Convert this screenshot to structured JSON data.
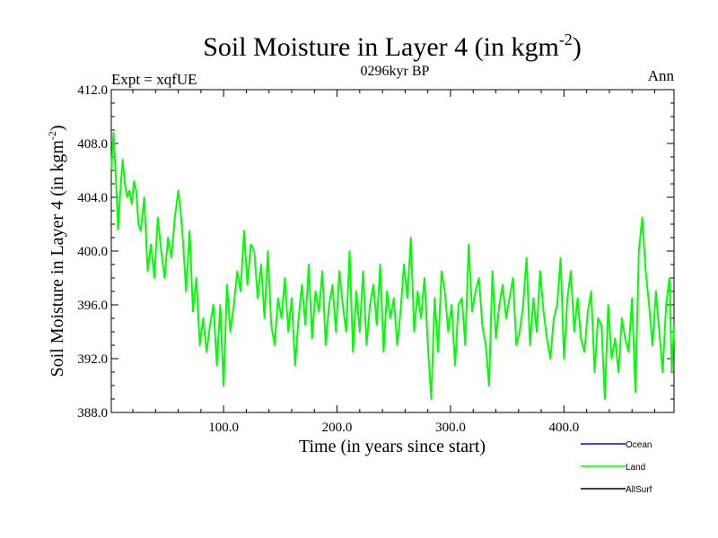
{
  "chart_data": {
    "type": "line",
    "title_main": "Soil Moisture in Layer 4 (in kgm",
    "title_sup": "-2",
    "title_close": ")",
    "subtitle_left": "Expt = xqfUE",
    "subtitle_center": "0296kyr BP",
    "subtitle_right": "Ann",
    "xlabel": "Time (in years since start)",
    "ylabel_main": "Soil Moisture in Layer 4 (in kgm",
    "ylabel_sup": "-2",
    "ylabel_close": ")",
    "xlim": [
      1,
      497
    ],
    "ylim": [
      388.0,
      412.0
    ],
    "x_ticks": [
      100,
      200,
      300,
      400
    ],
    "x_tick_labels": [
      "100.0",
      "200.0",
      "300.0",
      "400.0"
    ],
    "y_ticks": [
      388,
      392,
      396,
      400,
      404,
      408,
      412
    ],
    "y_tick_labels": [
      "388.0",
      "392.0",
      "396.0",
      "400.0",
      "404.0",
      "408.0",
      "412.0"
    ],
    "legend": [
      {
        "name": "Ocean",
        "color": "#0000ff"
      },
      {
        "name": "Land",
        "color": "#00ff00"
      },
      {
        "name": "AllSurf",
        "color": "#000000"
      }
    ],
    "series": [
      {
        "name": "Land",
        "color": "#00ff00",
        "x": [
          1,
          3,
          5,
          7,
          9,
          11,
          13,
          15,
          17,
          19,
          21,
          23,
          25,
          27,
          30,
          33,
          36,
          39,
          42,
          45,
          48,
          51,
          54,
          57,
          60,
          62,
          64,
          67,
          70,
          73,
          76,
          79,
          82,
          85,
          88,
          91,
          94,
          97,
          100,
          103,
          106,
          109,
          112,
          115,
          118,
          121,
          124,
          127,
          130,
          133,
          136,
          139,
          142,
          145,
          148,
          151,
          154,
          157,
          160,
          163,
          166,
          169,
          172,
          175,
          178,
          181,
          184,
          187,
          190,
          193,
          196,
          199,
          202,
          205,
          208,
          211,
          214,
          217,
          220,
          223,
          226,
          229,
          232,
          235,
          238,
          241,
          244,
          247,
          250,
          253,
          256,
          259,
          262,
          265,
          268,
          271,
          274,
          277,
          280,
          283,
          286,
          289,
          292,
          295,
          298,
          301,
          304,
          307,
          310,
          313,
          316,
          319,
          322,
          325,
          328,
          331,
          334,
          337,
          340,
          343,
          346,
          349,
          352,
          355,
          358,
          361,
          364,
          367,
          370,
          373,
          376,
          379,
          382,
          385,
          388,
          391,
          394,
          397,
          400,
          403,
          406,
          409,
          412,
          415,
          418,
          421,
          424,
          427,
          430,
          433,
          436,
          439,
          442,
          445,
          448,
          451,
          454,
          457,
          460,
          463,
          466,
          469,
          472,
          475,
          478,
          481,
          484,
          487,
          490,
          493,
          495,
          497
        ],
        "values": [
          406.0,
          408.8,
          405.5,
          401.6,
          404.5,
          406.8,
          405.0,
          404.0,
          404.5,
          403.5,
          405.2,
          404.5,
          402.0,
          401.5,
          404.0,
          398.5,
          400.5,
          398.0,
          402.5,
          400.0,
          398.0,
          401.0,
          399.5,
          402.5,
          404.5,
          403.0,
          401.0,
          397.0,
          401.5,
          395.5,
          398.0,
          393.0,
          395.0,
          392.5,
          394.5,
          396.0,
          391.5,
          396.0,
          390.0,
          397.5,
          394.0,
          396.0,
          398.5,
          397.0,
          401.5,
          397.5,
          400.5,
          400.0,
          396.5,
          399.0,
          395.0,
          400.0,
          394.5,
          393.0,
          396.5,
          395.0,
          398.0,
          394.0,
          396.5,
          391.5,
          395.0,
          397.5,
          394.5,
          399.0,
          393.5,
          397.0,
          395.5,
          398.5,
          393.0,
          396.0,
          397.5,
          394.0,
          398.5,
          396.0,
          394.0,
          400.0,
          392.5,
          397.0,
          394.0,
          398.5,
          393.0,
          396.0,
          397.5,
          394.5,
          399.0,
          392.5,
          397.0,
          395.0,
          396.5,
          393.0,
          395.5,
          399.0,
          396.5,
          401.0,
          394.0,
          397.0,
          395.0,
          398.0,
          393.0,
          389.0,
          396.5,
          392.5,
          398.5,
          397.0,
          394.0,
          396.0,
          391.5,
          396.0,
          396.5,
          393.0,
          400.5,
          395.5,
          397.0,
          398.0,
          394.5,
          393.0,
          390.0,
          398.5,
          393.5,
          396.0,
          397.5,
          395.0,
          396.5,
          398.0,
          393.0,
          394.0,
          396.0,
          399.5,
          393.0,
          396.5,
          394.0,
          398.5,
          395.5,
          393.5,
          392.0,
          395.0,
          396.0,
          399.5,
          392.0,
          396.5,
          398.5,
          394.0,
          396.5,
          393.5,
          392.5,
          395.5,
          397.0,
          391.0,
          395.0,
          394.5,
          389.0,
          396.0,
          392.0,
          393.5,
          391.0,
          395.0,
          393.5,
          392.5,
          396.5,
          389.5,
          400.0,
          402.5,
          398.5,
          396.0,
          393.0,
          397.0,
          394.0,
          391.0,
          396.0,
          398.0,
          391.0,
          394.5
        ]
      }
    ]
  }
}
